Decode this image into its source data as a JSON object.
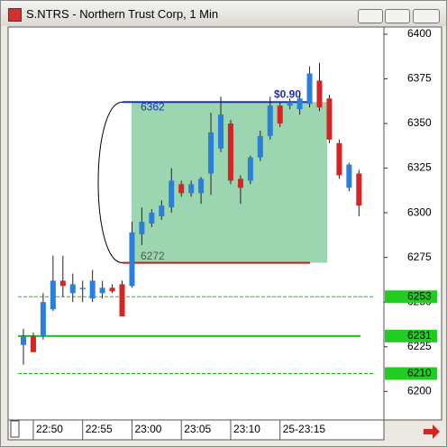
{
  "chart_data": {
    "type": "candlestick",
    "title": "S.NTRS - Northern Trust Corp, 1 Min",
    "categories": [
      null,
      "22:50",
      null,
      null,
      null,
      null,
      "22:55",
      null,
      null,
      null,
      null,
      "23:00",
      null,
      null,
      null,
      null,
      "23:05",
      null,
      null,
      null,
      null,
      "23:10",
      null,
      null,
      null,
      null,
      "25-23:15",
      null,
      null,
      null,
      null,
      null,
      null,
      null,
      null
    ],
    "open": [
      6226,
      6231,
      6231,
      6246,
      6262,
      6255,
      6258,
      6252,
      6255,
      6258,
      6260,
      6259,
      6288,
      6294,
      6298,
      6303,
      6316,
      6311,
      6311,
      6322,
      6336,
      6350,
      6319,
      6318,
      6331,
      6343,
      6360,
      6360,
      6358,
      6361,
      6374,
      6364,
      6339,
      6314,
      6322
    ],
    "high": [
      6235,
      6233,
      6255,
      6276,
      6276,
      6266,
      6262,
      6268,
      6262,
      6260,
      6262,
      6295,
      6303,
      6302,
      6307,
      6325,
      6318,
      6318,
      6320,
      6356,
      6365,
      6352,
      6321,
      6332,
      6346,
      6365,
      6362,
      6364,
      6368,
      6382,
      6384,
      6366,
      6341,
      6328,
      6324
    ],
    "low": [
      6215,
      6222,
      6229,
      6245,
      6253,
      6250,
      6250,
      6250,
      6252,
      6255,
      6242,
      6258,
      6282,
      6292,
      6296,
      6300,
      6309,
      6309,
      6305,
      6310,
      6334,
      6316,
      6305,
      6316,
      6329,
      6341,
      6348,
      6358,
      6355,
      6359,
      6357,
      6339,
      6319,
      6312,
      6298
    ],
    "close": [
      6231,
      6222,
      6250,
      6262,
      6259,
      6260,
      6258,
      6262,
      6258,
      6256,
      6242,
      6289,
      6295,
      6300,
      6304,
      6318,
      6311,
      6316,
      6319,
      6345,
      6355,
      6318,
      6314,
      6331,
      6343,
      6360,
      6350,
      6362,
      6364,
      6378,
      6359,
      6341,
      6321,
      6327,
      6304
    ],
    "up_color": "#2a7fd8",
    "down_color": "#d42424",
    "ylim": [
      6184,
      6404
    ],
    "yticks": [
      6200,
      6225,
      6250,
      6275,
      6300,
      6325,
      6350,
      6375,
      6400
    ],
    "range_box": {
      "high": 6362,
      "low": 6272,
      "label": "$0.90"
    },
    "levels": [
      {
        "value": 6253,
        "dashed": true
      },
      {
        "value": 6231,
        "dashed": false
      },
      {
        "value": 6210,
        "dashed": true
      }
    ]
  }
}
